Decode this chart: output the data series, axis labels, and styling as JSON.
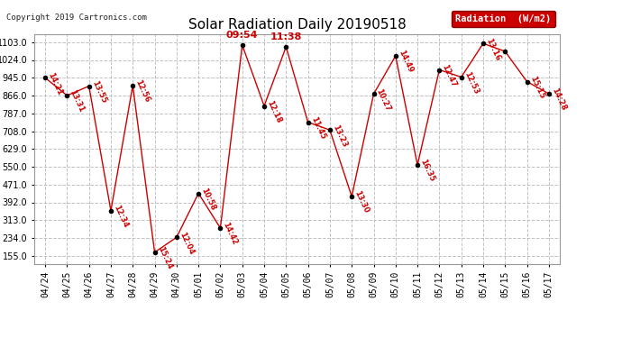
{
  "title": "Solar Radiation Daily 20190518",
  "copyright": "Copyright 2019 Cartronics.com",
  "legend_label": "Radiation  (W/m2)",
  "background_color": "#ffffff",
  "plot_bg_color": "#ffffff",
  "grid_color": "#bbbbbb",
  "line_color": "#cc0000",
  "marker_color": "#000000",
  "label_color": "#cc0000",
  "legend_bg": "#cc0000",
  "legend_text_color": "#ffffff",
  "ylim_min": 120,
  "ylim_max": 1140,
  "yticks": [
    155.0,
    234.0,
    313.0,
    392.0,
    471.0,
    550.0,
    629.0,
    708.0,
    787.0,
    866.0,
    945.0,
    1024.0,
    1103.0
  ],
  "dates": [
    "04/24",
    "04/25",
    "04/26",
    "04/27",
    "04/28",
    "04/29",
    "04/30",
    "05/01",
    "05/02",
    "05/03",
    "05/04",
    "05/05",
    "05/06",
    "05/07",
    "05/08",
    "05/09",
    "05/10",
    "05/11",
    "05/12",
    "05/13",
    "05/14",
    "05/15",
    "05/16",
    "05/17"
  ],
  "values": [
    945,
    866,
    908,
    355,
    910,
    170,
    237,
    432,
    278,
    1090,
    820,
    1082,
    748,
    713,
    418,
    873,
    1042,
    558,
    980,
    948,
    1097,
    1062,
    928,
    874
  ],
  "time_labels": [
    "14:21",
    "13:31",
    "13:55",
    "12:34",
    "12:56",
    "15:24",
    "12:04",
    "10:58",
    "14:42",
    "09:54",
    "12:18",
    "11:38",
    "11:45",
    "13:23",
    "13:30",
    "10:27",
    "14:49",
    "16:35",
    "12:47",
    "12:53",
    "13:16",
    "",
    "15:15",
    "14:28"
  ],
  "upright_indices": [
    9,
    11
  ],
  "title_fontsize": 11,
  "tick_fontsize": 7,
  "label_fontsize": 6,
  "copyright_fontsize": 6.5
}
